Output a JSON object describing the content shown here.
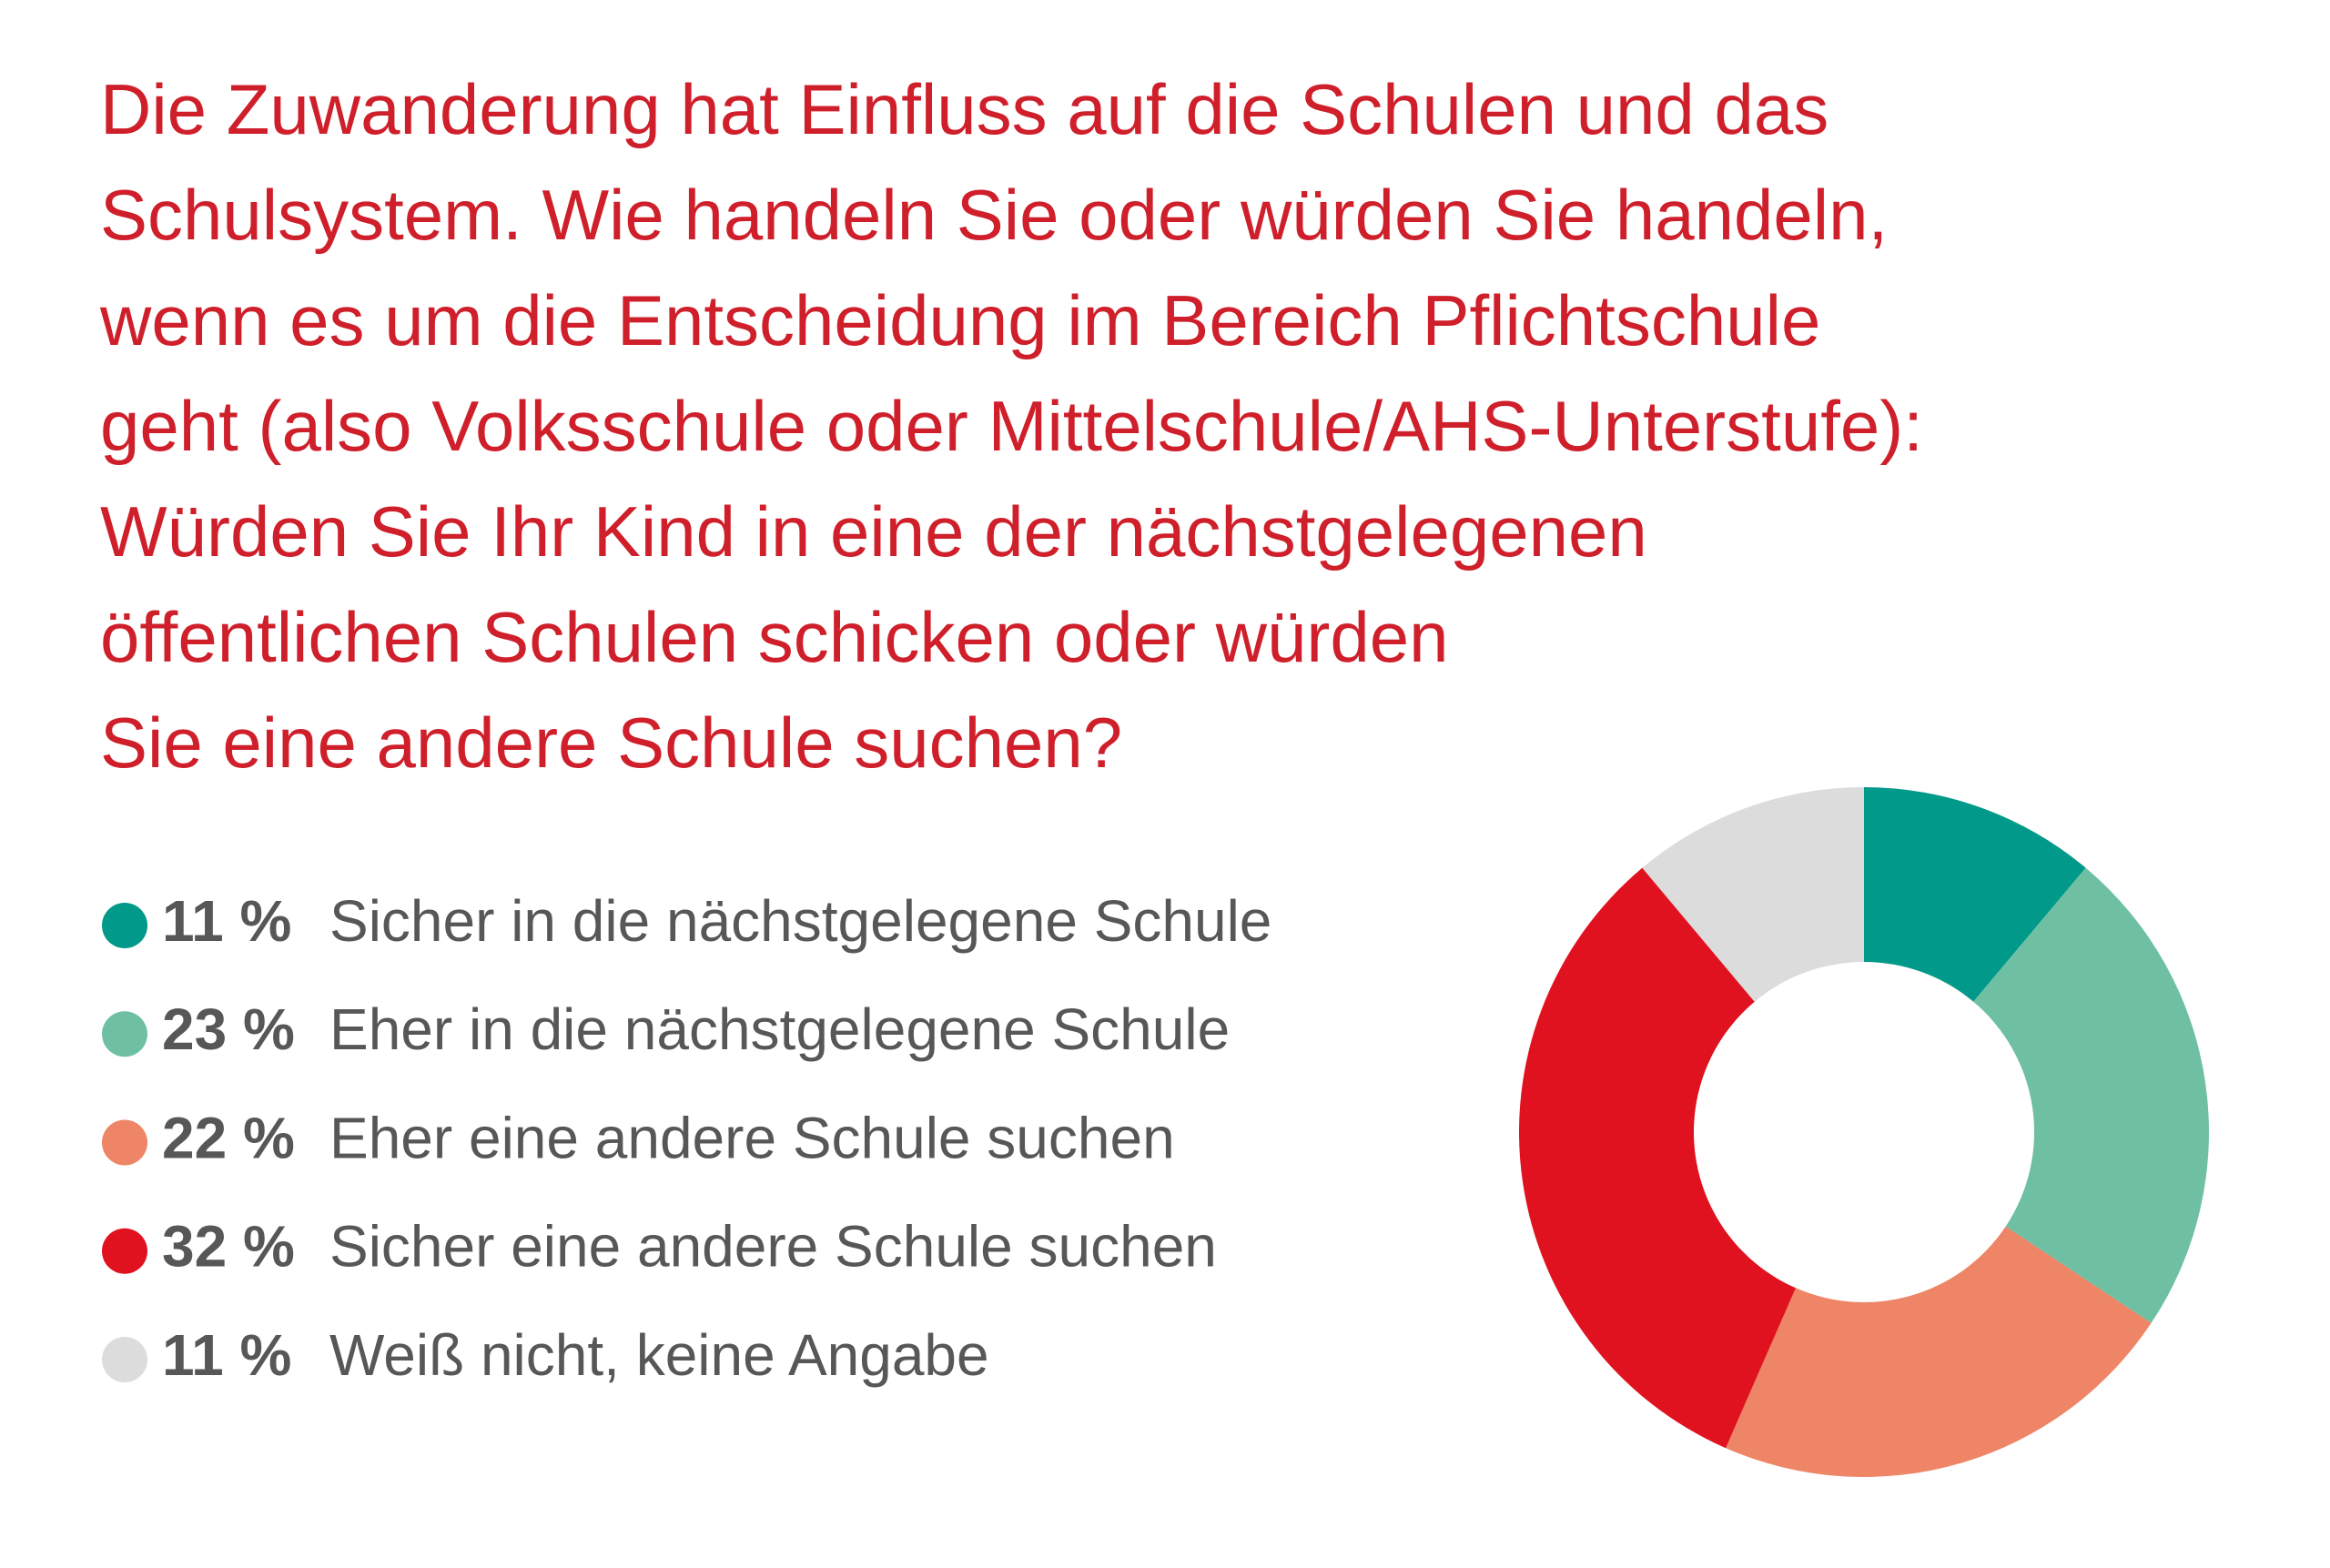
{
  "chart_data": {
    "type": "donut",
    "title": "Die Zuwanderung hat Einfluss auf die Schulen und das\nSchulsystem. Wie handeln Sie oder würden Sie handeln,\nwenn es um die Entscheidung im Bereich Pflichtschule\ngeht (also Volksschule oder Mittelschule/AHS-Unterstufe):\nWürden Sie Ihr Kind in eine der nächstgelegenen\nöffentlichen Schulen schicken oder würden\nSie eine andere Schule suchen?",
    "categories": [
      "Sicher in die nächstgelegene Schule",
      "Eher in die nächstgelegene Schule",
      "Eher eine andere Schule suchen",
      "Sicher eine andere Schule suchen",
      "Weiß nicht, keine Angabe"
    ],
    "values": [
      11,
      23,
      22,
      32,
      11
    ],
    "value_labels": [
      "11 %",
      "23 %",
      "22 %",
      "32 %",
      "11 %"
    ],
    "colors": [
      "#00998a",
      "#6fc0a3",
      "#ee8566",
      "#e0121f",
      "#dcdcdc"
    ]
  }
}
